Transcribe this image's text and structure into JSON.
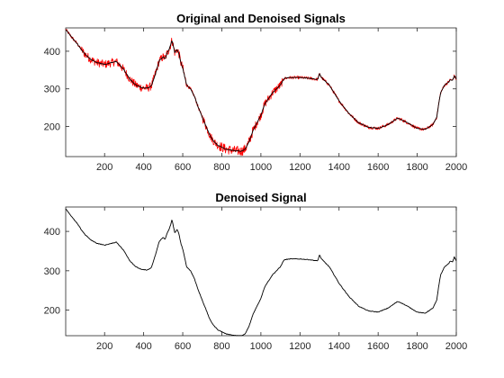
{
  "chart_data": [
    {
      "type": "line",
      "title": "Original and Denoised Signals",
      "xlabel": "",
      "ylabel": "",
      "xlim": [
        1,
        2000
      ],
      "ylim": [
        120,
        462
      ],
      "xticks": [
        200,
        400,
        600,
        800,
        1000,
        1200,
        1400,
        1600,
        1800,
        2000
      ],
      "yticks": [
        200,
        300,
        400
      ],
      "grid": false,
      "legend": "none",
      "series": [
        {
          "color": "#ff0000",
          "noisy": true
        },
        {
          "color": "#000000",
          "noisy": false
        }
      ]
    },
    {
      "type": "line",
      "title": "Denoised Signal",
      "xlabel": "",
      "ylabel": "",
      "xlim": [
        1,
        2000
      ],
      "ylim": [
        135,
        462
      ],
      "xticks": [
        200,
        400,
        600,
        800,
        1000,
        1200,
        1400,
        1600,
        1800,
        2000
      ],
      "yticks": [
        200,
        300,
        400
      ],
      "grid": false,
      "legend": "none",
      "series": [
        {
          "color": "#000000",
          "noisy": false
        }
      ]
    }
  ],
  "signal": {
    "x": [
      1,
      20,
      40,
      60,
      80,
      100,
      130,
      160,
      200,
      240,
      260,
      280,
      300,
      330,
      360,
      390,
      420,
      440,
      460,
      480,
      500,
      510,
      520,
      530,
      540,
      545,
      560,
      570,
      580,
      590,
      600,
      620,
      640,
      660,
      680,
      700,
      720,
      740,
      760,
      780,
      800,
      820,
      840,
      860,
      880,
      900,
      920,
      940,
      960,
      980,
      1000,
      1020,
      1040,
      1060,
      1080,
      1100,
      1110,
      1120,
      1150,
      1200,
      1250,
      1290,
      1300,
      1310,
      1320,
      1350,
      1380,
      1400,
      1450,
      1500,
      1550,
      1600,
      1650,
      1700,
      1720,
      1750,
      1800,
      1840,
      1880,
      1900,
      1910,
      1920,
      1940,
      1960,
      1970,
      1980,
      1990,
      2000
    ],
    "y": [
      458,
      445,
      432,
      420,
      405,
      392,
      378,
      370,
      365,
      370,
      373,
      362,
      350,
      325,
      310,
      303,
      302,
      308,
      340,
      375,
      385,
      380,
      395,
      405,
      420,
      430,
      395,
      405,
      395,
      370,
      355,
      310,
      300,
      280,
      250,
      225,
      200,
      175,
      160,
      150,
      145,
      140,
      138,
      136,
      135,
      134,
      140,
      160,
      190,
      210,
      230,
      260,
      275,
      290,
      300,
      310,
      320,
      328,
      330,
      330,
      328,
      325,
      340,
      330,
      325,
      310,
      285,
      268,
      235,
      210,
      198,
      195,
      205,
      222,
      218,
      210,
      195,
      192,
      205,
      225,
      260,
      290,
      310,
      318,
      325,
      322,
      335,
      325
    ]
  }
}
